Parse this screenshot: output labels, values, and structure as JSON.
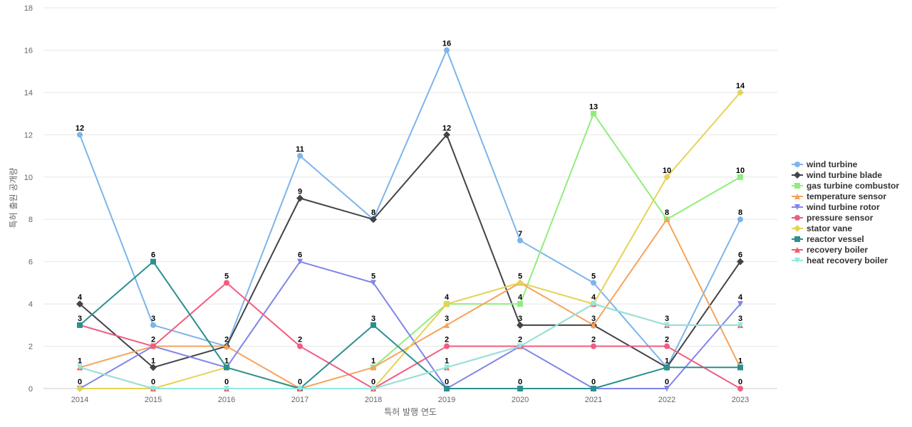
{
  "chart_data": {
    "type": "line",
    "xlabel": "특허 발행 연도",
    "ylabel": "특허 출원 공개량",
    "ylim": [
      0,
      18
    ],
    "yticks": [
      0,
      2,
      4,
      6,
      8,
      10,
      12,
      14,
      16,
      18
    ],
    "grid": true,
    "legend_position": "right",
    "categories": [
      "2014",
      "2015",
      "2016",
      "2017",
      "2018",
      "2019",
      "2020",
      "2021",
      "2022",
      "2023"
    ],
    "series": [
      {
        "name": "wind turbine",
        "color": "#7cb5ec",
        "marker": "circle",
        "values": [
          12,
          3,
          2,
          11,
          8,
          16,
          7,
          5,
          1,
          8
        ]
      },
      {
        "name": "wind turbine blade",
        "color": "#434348",
        "marker": "diamond",
        "values": [
          4,
          1,
          2,
          9,
          8,
          12,
          3,
          3,
          1,
          6
        ]
      },
      {
        "name": "gas turbine combustor",
        "color": "#90ed7d",
        "marker": "square",
        "values": [
          null,
          null,
          null,
          null,
          1,
          4,
          4,
          13,
          8,
          10
        ]
      },
      {
        "name": "temperature sensor",
        "color": "#f7a35c",
        "marker": "triangle",
        "values": [
          1,
          2,
          2,
          0,
          1,
          3,
          5,
          3,
          8,
          1
        ]
      },
      {
        "name": "wind turbine rotor",
        "color": "#8085e9",
        "marker": "triangle-down",
        "values": [
          0,
          2,
          1,
          6,
          5,
          0,
          2,
          0,
          0,
          4
        ]
      },
      {
        "name": "pressure sensor",
        "color": "#f15c80",
        "marker": "circle",
        "values": [
          3,
          2,
          5,
          2,
          0,
          2,
          2,
          2,
          2,
          0
        ]
      },
      {
        "name": "stator vane",
        "color": "#e4d354",
        "marker": "diamond",
        "values": [
          0,
          0,
          1,
          0,
          0,
          4,
          5,
          4,
          10,
          14
        ]
      },
      {
        "name": "reactor vessel",
        "color": "#2b908f",
        "marker": "square",
        "values": [
          3,
          6,
          1,
          0,
          3,
          0,
          0,
          0,
          1,
          1
        ]
      },
      {
        "name": "recovery boiler",
        "color": "#f45b5b",
        "marker": "triangle",
        "values": [
          1,
          0,
          0,
          0,
          0,
          1,
          2,
          4,
          3,
          3
        ]
      },
      {
        "name": "heat recovery boiler",
        "color": "#91e8e1",
        "marker": "triangle-down",
        "values": [
          1,
          0,
          0,
          0,
          0,
          1,
          2,
          4,
          3,
          3
        ]
      }
    ],
    "data_labels": [
      {
        "cat": "2014",
        "value": 12
      },
      {
        "cat": "2014",
        "value": 4
      },
      {
        "cat": "2014",
        "value": 3
      },
      {
        "cat": "2014",
        "value": 1
      },
      {
        "cat": "2014",
        "value": 0
      },
      {
        "cat": "2015",
        "value": 6
      },
      {
        "cat": "2015",
        "value": 3
      },
      {
        "cat": "2015",
        "value": 2
      },
      {
        "cat": "2015",
        "value": 1
      },
      {
        "cat": "2015",
        "value": 0
      },
      {
        "cat": "2016",
        "value": 5
      },
      {
        "cat": "2016",
        "value": 2
      },
      {
        "cat": "2016",
        "value": 1
      },
      {
        "cat": "2016",
        "value": 0
      },
      {
        "cat": "2017",
        "value": 11
      },
      {
        "cat": "2017",
        "value": 9
      },
      {
        "cat": "2017",
        "value": 6
      },
      {
        "cat": "2017",
        "value": 2
      },
      {
        "cat": "2017",
        "value": 0
      },
      {
        "cat": "2018",
        "value": 8
      },
      {
        "cat": "2018",
        "value": 5
      },
      {
        "cat": "2018",
        "value": 3
      },
      {
        "cat": "2018",
        "value": 1
      },
      {
        "cat": "2018",
        "value": 0
      },
      {
        "cat": "2019",
        "value": 16
      },
      {
        "cat": "2019",
        "value": 12
      },
      {
        "cat": "2019",
        "value": 4
      },
      {
        "cat": "2019",
        "value": 3
      },
      {
        "cat": "2019",
        "value": 2
      },
      {
        "cat": "2019",
        "value": 1
      },
      {
        "cat": "2019",
        "value": 0
      },
      {
        "cat": "2020",
        "value": 7
      },
      {
        "cat": "2020",
        "value": 5
      },
      {
        "cat": "2020",
        "value": 4
      },
      {
        "cat": "2020",
        "value": 3
      },
      {
        "cat": "2020",
        "value": 2
      },
      {
        "cat": "2020",
        "value": 0
      },
      {
        "cat": "2021",
        "value": 13
      },
      {
        "cat": "2021",
        "value": 5
      },
      {
        "cat": "2021",
        "value": 4
      },
      {
        "cat": "2021",
        "value": 3
      },
      {
        "cat": "2021",
        "value": 2
      },
      {
        "cat": "2021",
        "value": 0
      },
      {
        "cat": "2022",
        "value": 10
      },
      {
        "cat": "2022",
        "value": 8
      },
      {
        "cat": "2022",
        "value": 3
      },
      {
        "cat": "2022",
        "value": 2
      },
      {
        "cat": "2022",
        "value": 1
      },
      {
        "cat": "2022",
        "value": 0
      },
      {
        "cat": "2023",
        "value": 14
      },
      {
        "cat": "2023",
        "value": 10
      },
      {
        "cat": "2023",
        "value": 8
      },
      {
        "cat": "2023",
        "value": 6
      },
      {
        "cat": "2023",
        "value": 4
      },
      {
        "cat": "2023",
        "value": 3
      },
      {
        "cat": "2023",
        "value": 1
      },
      {
        "cat": "2023",
        "value": 0
      }
    ]
  }
}
